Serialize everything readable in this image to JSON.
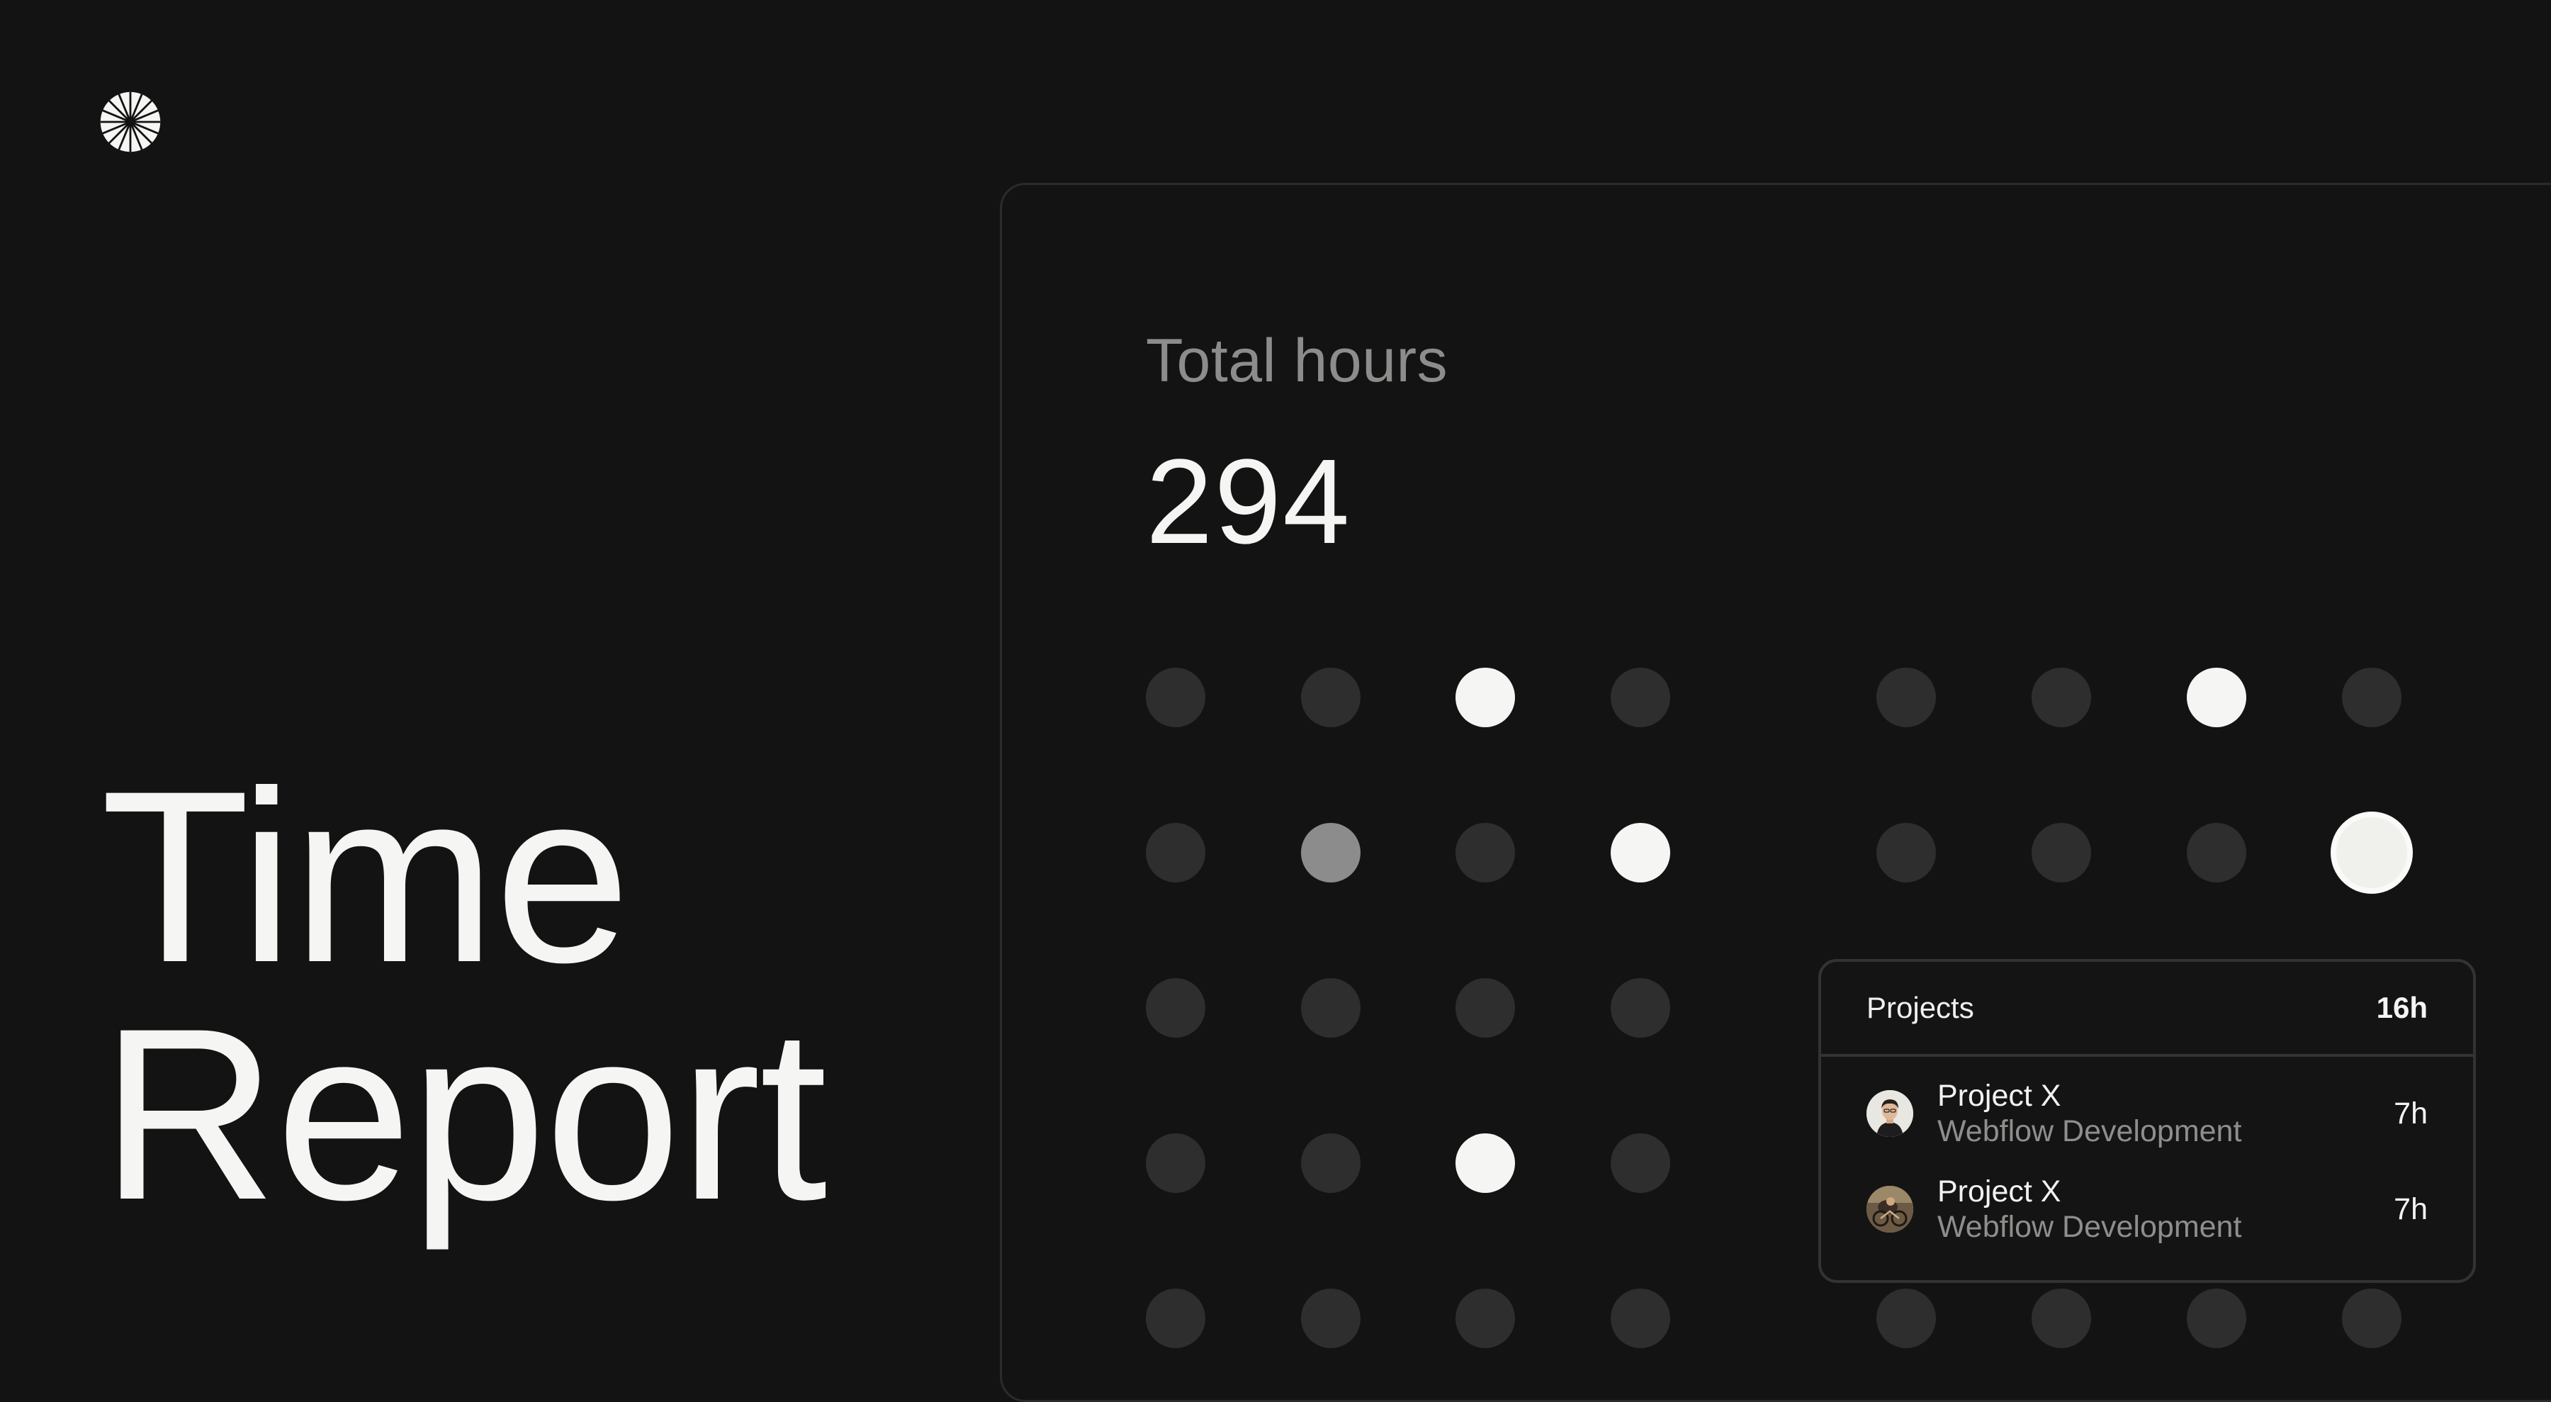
{
  "app": {
    "logo_icon": "radial-burst-icon",
    "title_line1": "Time",
    "title_line2": "Report"
  },
  "summary": {
    "label": "Total hours",
    "value": "294"
  },
  "dot_grid": {
    "levels": [
      "off",
      "mid",
      "on",
      "focus"
    ],
    "left_group": [
      [
        "off",
        "off",
        "on",
        "off"
      ],
      [
        "off",
        "mid",
        "off",
        "on"
      ],
      [
        "off",
        "off",
        "off",
        "off"
      ],
      [
        "off",
        "off",
        "on",
        "off"
      ],
      [
        "off",
        "off",
        "off",
        "off"
      ]
    ],
    "right_group": [
      [
        "off",
        "off",
        "on",
        "off"
      ],
      [
        "off",
        "off",
        "off",
        "focus"
      ],
      [
        "off",
        "off",
        "off",
        "off"
      ],
      [
        "off",
        "off",
        "off",
        "off"
      ],
      [
        "off",
        "off",
        "off",
        "off"
      ]
    ]
  },
  "popup": {
    "title": "Projects",
    "total": "16h",
    "rows": [
      {
        "title": "Project X",
        "subtitle": "Webflow Development",
        "hours": "7h",
        "avatar": "person-avatar"
      },
      {
        "title": "Project X",
        "subtitle": "Webflow Development",
        "hours": "7h",
        "avatar": "cyclist-avatar"
      }
    ]
  },
  "colors": {
    "background": "#131313",
    "text": "#f5f5f3",
    "muted": "#8c8c8a",
    "dot_off": "#2e2e2e",
    "dot_mid": "#8c8c8c",
    "dot_on": "#f5f5f3",
    "border": "#333333"
  }
}
